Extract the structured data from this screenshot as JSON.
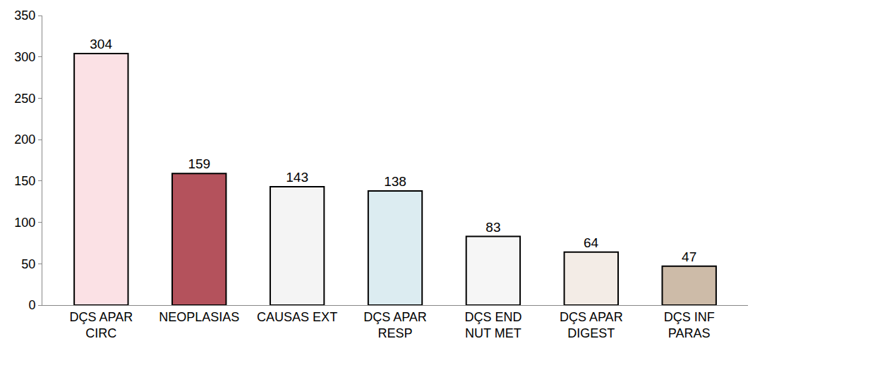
{
  "chart_data": {
    "type": "bar",
    "categories": [
      "DÇS APAR CIRC",
      "NEOPLASIAS",
      "CAUSAS EXT",
      "DÇS APAR RESP",
      "DÇS END NUT MET",
      "DÇS APAR DIGEST",
      "DÇS INF PARAS"
    ],
    "values": [
      304,
      159,
      143,
      138,
      83,
      64,
      47
    ],
    "colors": [
      "#fbe1e5",
      "#b4525c",
      "#f4f4f4",
      "#dcecf1",
      "#f6f6f6",
      "#f3ece6",
      "#cdbba8"
    ],
    "ylim": [
      0,
      350
    ],
    "yticks": [
      0,
      50,
      100,
      150,
      200,
      250,
      300,
      350
    ],
    "grid": false,
    "data_labels": true
  }
}
